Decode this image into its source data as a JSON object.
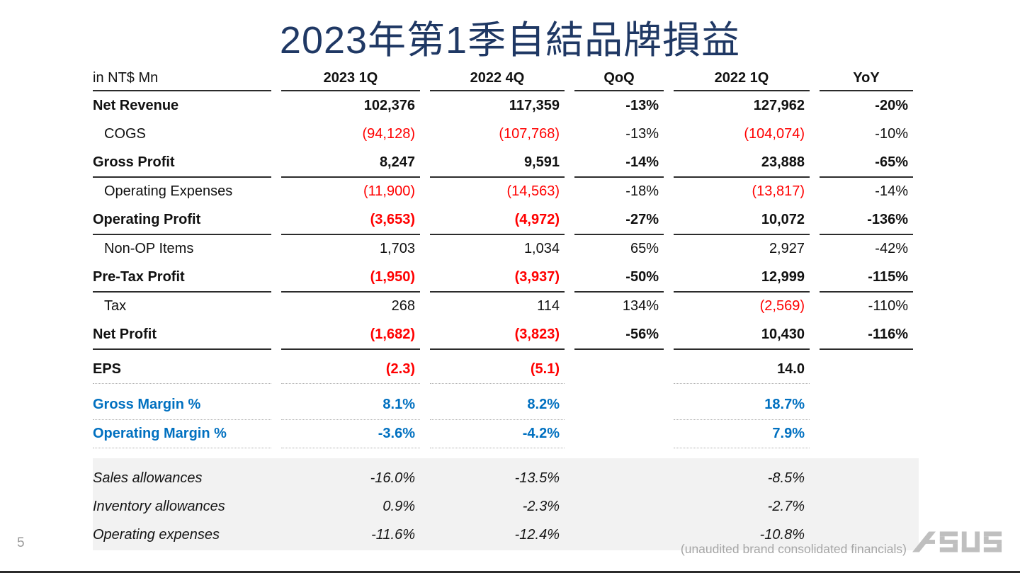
{
  "title": "2023年第1季自結品牌損益",
  "table": {
    "unit_label": "in NT$ Mn",
    "columns": [
      "2023 1Q",
      "2022 4Q",
      "QoQ",
      "2022 1Q",
      "YoY"
    ],
    "rows": [
      {
        "label": "Net Revenue",
        "bold": true,
        "indent": false,
        "underline": "none",
        "values": [
          {
            "t": "102,376"
          },
          {
            "t": "117,359"
          },
          {
            "t": "-13%"
          },
          {
            "t": "127,962"
          },
          {
            "t": "-20%"
          }
        ]
      },
      {
        "label": "COGS",
        "bold": false,
        "indent": true,
        "underline": "none",
        "values": [
          {
            "t": "(94,128)",
            "red": true
          },
          {
            "t": "(107,768)",
            "red": true
          },
          {
            "t": "-13%"
          },
          {
            "t": "(104,074)",
            "red": true
          },
          {
            "t": "-10%"
          }
        ]
      },
      {
        "label": "Gross Profit",
        "bold": true,
        "indent": false,
        "underline": "solid",
        "values": [
          {
            "t": "8,247"
          },
          {
            "t": "9,591"
          },
          {
            "t": "-14%"
          },
          {
            "t": "23,888"
          },
          {
            "t": "-65%"
          }
        ]
      },
      {
        "label": "Operating Expenses",
        "bold": false,
        "indent": true,
        "underline": "none",
        "values": [
          {
            "t": "(11,900)",
            "red": true
          },
          {
            "t": "(14,563)",
            "red": true
          },
          {
            "t": "-18%"
          },
          {
            "t": "(13,817)",
            "red": true
          },
          {
            "t": "-14%"
          }
        ]
      },
      {
        "label": "Operating Profit",
        "bold": true,
        "indent": false,
        "underline": "solid",
        "values": [
          {
            "t": "(3,653)",
            "red": true
          },
          {
            "t": "(4,972)",
            "red": true
          },
          {
            "t": "-27%"
          },
          {
            "t": "10,072"
          },
          {
            "t": "-136%"
          }
        ]
      },
      {
        "label": "Non-OP Items",
        "bold": false,
        "indent": true,
        "underline": "none",
        "values": [
          {
            "t": "1,703"
          },
          {
            "t": "1,034"
          },
          {
            "t": "65%"
          },
          {
            "t": "2,927"
          },
          {
            "t": "-42%"
          }
        ]
      },
      {
        "label": "Pre-Tax Profit",
        "bold": true,
        "indent": false,
        "underline": "solid",
        "values": [
          {
            "t": "(1,950)",
            "red": true
          },
          {
            "t": "(3,937)",
            "red": true
          },
          {
            "t": "-50%"
          },
          {
            "t": "12,999"
          },
          {
            "t": "-115%"
          }
        ]
      },
      {
        "label": "Tax",
        "bold": false,
        "indent": true,
        "underline": "none",
        "values": [
          {
            "t": "268"
          },
          {
            "t": "114"
          },
          {
            "t": "134%"
          },
          {
            "t": "(2,569)",
            "red": true
          },
          {
            "t": "-110%"
          }
        ]
      },
      {
        "label": "Net Profit",
        "bold": true,
        "indent": false,
        "underline": "solid",
        "values": [
          {
            "t": "(1,682)",
            "red": true
          },
          {
            "t": "(3,823)",
            "red": true
          },
          {
            "t": "-56%"
          },
          {
            "t": "10,430"
          },
          {
            "t": "-116%"
          }
        ]
      }
    ],
    "eps_rows": [
      {
        "label": "EPS",
        "style": "eps",
        "values": [
          {
            "t": "(2.3)",
            "red": true
          },
          {
            "t": "(5.1)",
            "red": true
          },
          {
            "t": ""
          },
          {
            "t": "14.0"
          },
          {
            "t": ""
          }
        ]
      },
      {
        "label": "Gross Margin %",
        "style": "margin",
        "values": [
          {
            "t": "8.1%"
          },
          {
            "t": "8.2%"
          },
          {
            "t": ""
          },
          {
            "t": "18.7%"
          },
          {
            "t": ""
          }
        ]
      },
      {
        "label": "Operating Margin %",
        "style": "margin",
        "values": [
          {
            "t": "-3.6%"
          },
          {
            "t": "-4.2%"
          },
          {
            "t": ""
          },
          {
            "t": "7.9%"
          },
          {
            "t": ""
          }
        ]
      }
    ],
    "allowance_rows": [
      {
        "label": "Sales allowances",
        "values": [
          {
            "t": "-16.0%"
          },
          {
            "t": "-13.5%"
          },
          {
            "t": ""
          },
          {
            "t": "-8.5%"
          },
          {
            "t": ""
          }
        ]
      },
      {
        "label": "Inventory allowances",
        "values": [
          {
            "t": "0.9%"
          },
          {
            "t": "-2.3%"
          },
          {
            "t": ""
          },
          {
            "t": "-2.7%"
          },
          {
            "t": ""
          }
        ]
      },
      {
        "label": "Operating expenses",
        "values": [
          {
            "t": "-11.6%"
          },
          {
            "t": "-12.4%"
          },
          {
            "t": ""
          },
          {
            "t": "-10.8%"
          },
          {
            "t": ""
          }
        ]
      }
    ]
  },
  "footer": {
    "page_number": "5",
    "note": "(unaudited brand consolidated financials)",
    "logo_text": "ASUS"
  },
  "colors": {
    "title_navy": "#1f3864",
    "negative_red": "#ff0000",
    "margin_blue": "#0070c0",
    "allowance_band_bg": "#f2f2f2",
    "footnote_gray": "#a6a6a6",
    "logo_gray": "#bfbfbf"
  }
}
